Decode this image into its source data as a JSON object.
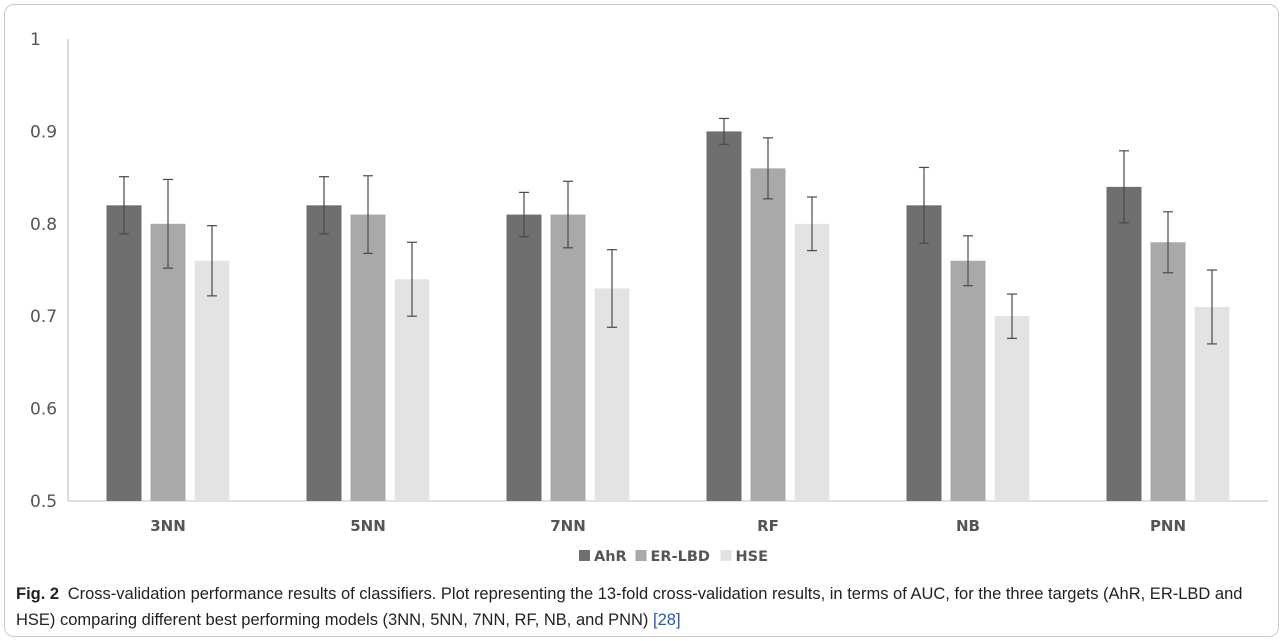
{
  "chart_data": {
    "type": "bar",
    "categories": [
      "3NN",
      "5NN",
      "7NN",
      "RF",
      "NB",
      "PNN"
    ],
    "series": [
      {
        "name": "AhR",
        "color": "#6f6f6f",
        "values": [
          0.82,
          0.82,
          0.81,
          0.9,
          0.82,
          0.84
        ],
        "errors": [
          0.031,
          0.031,
          0.024,
          0.014,
          0.041,
          0.039
        ]
      },
      {
        "name": "ER-LBD",
        "color": "#a9a9a9",
        "values": [
          0.8,
          0.81,
          0.81,
          0.86,
          0.76,
          0.78
        ],
        "errors": [
          0.048,
          0.042,
          0.036,
          0.033,
          0.027,
          0.033
        ]
      },
      {
        "name": "HSE",
        "color": "#e3e3e3",
        "values": [
          0.76,
          0.74,
          0.73,
          0.8,
          0.7,
          0.71
        ],
        "errors": [
          0.038,
          0.04,
          0.042,
          0.029,
          0.024,
          0.04
        ]
      }
    ],
    "ylim": [
      0.5,
      1.0
    ],
    "yticks": [
      "0.5",
      "0.6",
      "0.7",
      "0.8",
      "0.9",
      "1"
    ],
    "grid": false,
    "legend_position": "bottom-center",
    "xlabel": "",
    "ylabel": ""
  },
  "caption": {
    "label": "Fig. 2",
    "text": "Cross-validation performance results of classifiers. Plot representing the 13-fold cross-validation results, in terms of AUC, for the three targets (AhR, ER-LBD and HSE) comparing different best performing models (3NN, 5NN, 7NN, RF, NB, and PNN)",
    "ref": "[28]"
  }
}
